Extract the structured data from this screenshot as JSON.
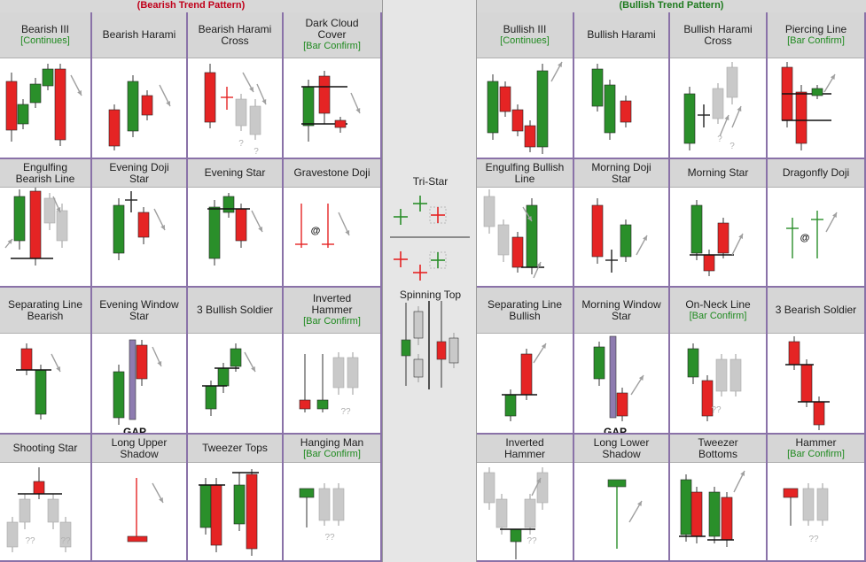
{
  "banners": {
    "bearish": "(Bearish Trend Pattern)",
    "bullish": "(Bullish Trend Pattern)"
  },
  "colors": {
    "red": "#e52424",
    "green": "#2a8f2a",
    "gray": "#c9c9c9",
    "grid": "#8a72a8",
    "arrow": "#a0a0a0"
  },
  "bearish": [
    [
      "Bearish III",
      "[Continues]",
      ""
    ],
    [
      "Bearish Harami",
      "",
      ""
    ],
    [
      "Bearish Harami",
      "Cross",
      ""
    ],
    [
      "Dark Cloud",
      "Cover",
      "[Bar Confirm]"
    ],
    [
      "Engulfing",
      "Bearish Line",
      ""
    ],
    [
      "Evening Doji",
      "Star",
      ""
    ],
    [
      "Evening Star",
      "",
      ""
    ],
    [
      "Gravestone Doji",
      "",
      ""
    ],
    [
      "Separating  Line",
      "Bearish",
      ""
    ],
    [
      "Evening Window",
      "Star",
      ""
    ],
    [
      "3 Bullish Soldier",
      "",
      ""
    ],
    [
      "Inverted",
      "Hammer",
      "[Bar Confirm]"
    ],
    [
      "Shooting Star",
      "",
      ""
    ],
    [
      "Long Upper",
      "Shadow",
      ""
    ],
    [
      "Tweezer Tops",
      "",
      ""
    ],
    [
      "Hanging Man",
      "[Bar Confirm]",
      ""
    ]
  ],
  "bullish": [
    [
      "Bullish III",
      "[Continues]",
      ""
    ],
    [
      "Bullish Harami",
      "",
      ""
    ],
    [
      "Bullish Harami",
      "Cross",
      ""
    ],
    [
      "Piercing Line",
      "[Bar Confirm]",
      ""
    ],
    [
      "Engulfing Bullish",
      "Line",
      ""
    ],
    [
      "Morning Doji",
      "Star",
      ""
    ],
    [
      "Morning Star",
      "",
      ""
    ],
    [
      "Dragonfly Doji",
      "",
      ""
    ],
    [
      "Separating Line",
      "Bullish",
      ""
    ],
    [
      "Morning Window",
      "Star",
      ""
    ],
    [
      "On-Neck Line",
      "[Bar Confirm]",
      ""
    ],
    [
      "3 Bearish Soldier",
      "",
      ""
    ],
    [
      "Inverted",
      "Hammer",
      ""
    ],
    [
      "Long Lower",
      "Shadow",
      ""
    ],
    [
      "Tweezer",
      "Bottoms",
      ""
    ],
    [
      "Hammer",
      "[Bar Confirm]",
      ""
    ]
  ],
  "center": {
    "tristar": "Tri-Star",
    "spinning": "Spinning Top"
  },
  "markers": {
    "gap": "GAP",
    "unknown": "?",
    "double_unknown": "??",
    "at": "@"
  }
}
